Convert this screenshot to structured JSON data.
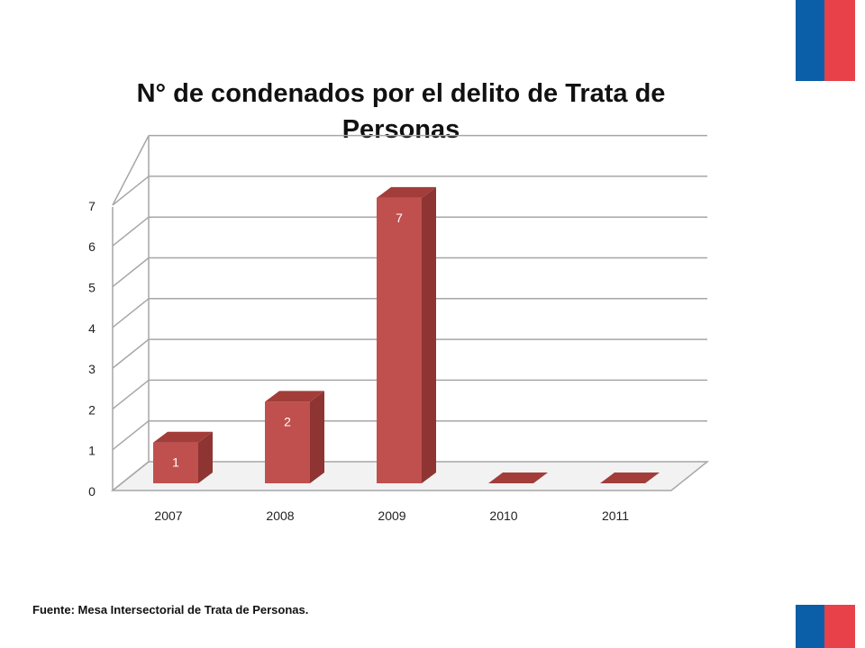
{
  "flags": {
    "blue": "#0a5fa8",
    "red": "#e8414a"
  },
  "title_lines": [
    "N° de condenados por el delito de Trata de",
    "Personas"
  ],
  "source": "Fuente: Mesa Intersectorial de Trata de Personas.",
  "chart_data": {
    "type": "bar",
    "title": "N° de condenados por el delito de Trata de Personas",
    "categories": [
      "2007",
      "2008",
      "2009",
      "2010",
      "2011"
    ],
    "values": [
      1,
      2,
      7,
      0,
      0
    ],
    "data_labels": [
      "1",
      "2",
      "7",
      "",
      ""
    ],
    "ylim": [
      0,
      7
    ],
    "yticks": [
      0,
      1,
      2,
      3,
      4,
      5,
      6,
      7
    ],
    "grid": true,
    "style": "3d",
    "bar_color": "#c0504d"
  }
}
